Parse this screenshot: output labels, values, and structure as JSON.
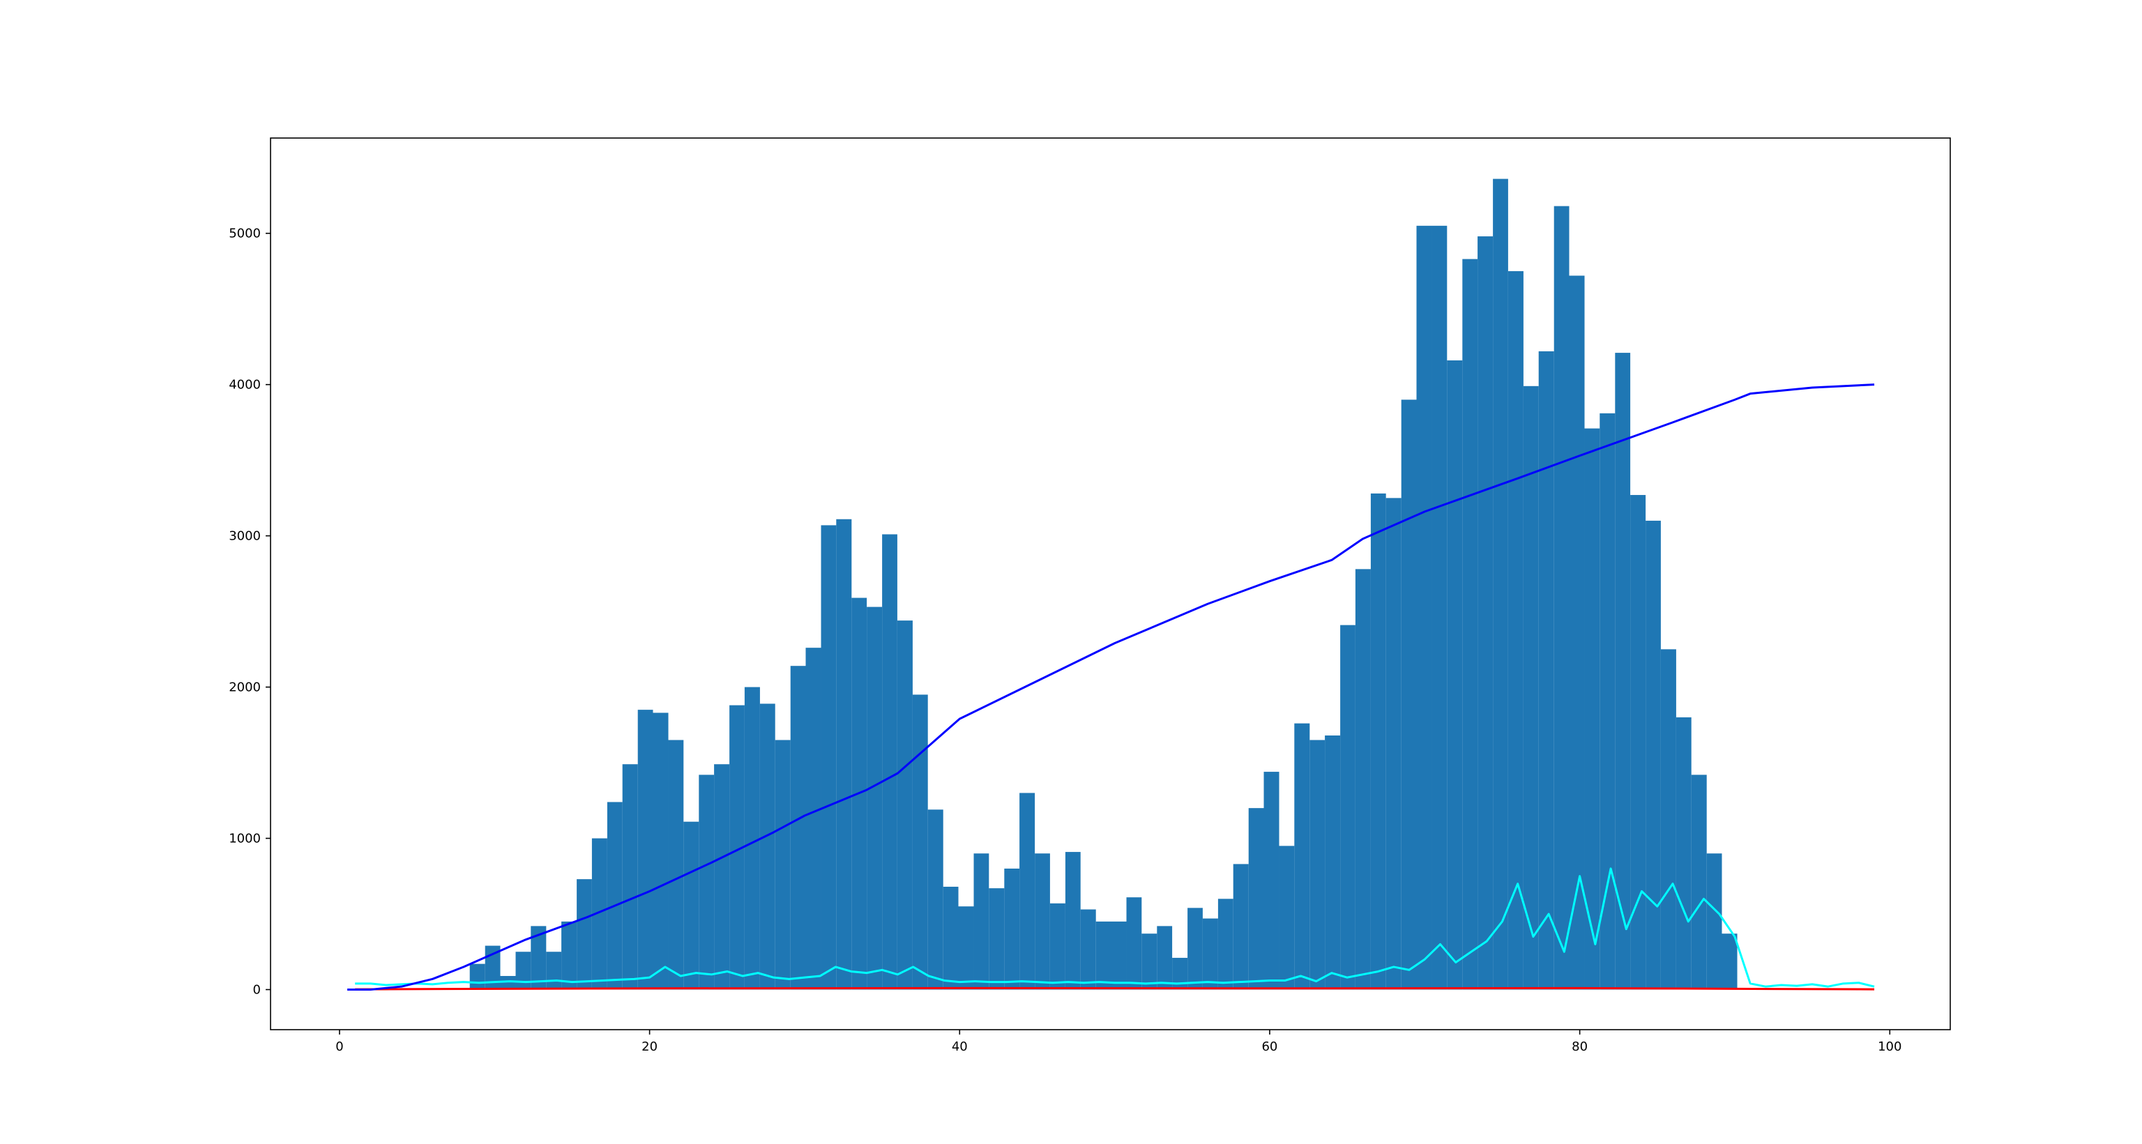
{
  "chart_data": {
    "type": "histogram",
    "color": "#1f77b4",
    "bins": [
      8.4,
      9.39,
      10.37,
      11.36,
      12.34,
      13.33,
      14.31,
      15.3,
      16.28,
      17.27,
      18.25,
      19.24,
      20.22,
      21.21,
      22.19,
      23.18,
      24.16,
      25.15,
      26.13,
      27.12,
      28.1,
      29.09,
      30.07,
      31.06,
      32.04,
      33.03,
      34.01,
      35.0,
      35.98,
      36.97,
      37.95,
      38.94,
      39.92,
      40.91,
      41.89,
      42.88,
      43.86,
      44.85,
      45.83,
      46.82,
      47.8,
      48.79,
      49.77,
      50.76,
      51.74,
      52.73,
      53.71,
      54.7,
      55.68,
      56.67,
      57.65,
      58.64,
      59.62,
      60.61,
      61.59,
      62.58,
      63.56,
      64.55,
      65.53,
      66.52,
      67.5,
      68.49,
      69.47,
      70.46,
      71.44,
      72.43,
      73.41,
      74.4,
      75.38,
      76.37,
      77.35,
      78.34,
      79.32,
      80.31,
      81.29,
      82.28,
      83.26,
      84.25,
      85.23,
      86.22,
      87.2,
      88.19,
      89.17,
      90.16
    ],
    "values": [
      170,
      290,
      90,
      250,
      420,
      250,
      450,
      730,
      1000,
      1240,
      1490,
      1850,
      1830,
      1650,
      1110,
      1420,
      1490,
      1880,
      2000,
      1890,
      1650,
      2140,
      2260,
      3070,
      3110,
      2590,
      2530,
      3010,
      2440,
      1950,
      1190,
      680,
      550,
      900,
      670,
      800,
      1300,
      900,
      570,
      910,
      530,
      450,
      450,
      610,
      370,
      420,
      210,
      540,
      470,
      600,
      830,
      1200,
      1440,
      950,
      1760,
      1650,
      1680,
      2410,
      2780,
      3280,
      3250,
      3900,
      5050,
      5050,
      4160,
      4830,
      4980,
      5360,
      4750,
      3990,
      4220,
      5180,
      4720,
      3710,
      3810,
      4210,
      3270,
      3100,
      2250,
      1800,
      1420,
      900,
      370
    ],
    "series": [
      {
        "color": "#00ffff",
        "x": [
          1,
          2,
          3,
          4,
          5,
          6,
          7,
          8,
          9,
          10,
          11,
          12,
          13,
          14,
          15,
          16,
          17,
          18,
          19,
          20,
          21,
          22,
          23,
          24,
          25,
          26,
          27,
          28,
          29,
          30,
          31,
          32,
          33,
          34,
          35,
          36,
          37,
          38,
          39,
          40,
          41,
          42,
          43,
          44,
          45,
          46,
          47,
          48,
          49,
          50,
          51,
          52,
          53,
          54,
          55,
          56,
          57,
          58,
          59,
          60,
          61,
          62,
          63,
          64,
          65,
          66,
          67,
          68,
          69,
          70,
          71,
          72,
          73,
          74,
          75,
          76,
          77,
          78,
          79,
          80,
          81,
          82,
          83,
          84,
          85,
          86,
          87,
          88,
          89,
          90,
          91,
          92,
          93,
          94,
          95,
          96,
          97,
          98,
          99
        ],
        "values": [
          40,
          40,
          30,
          35,
          40,
          35,
          45,
          50,
          45,
          50,
          55,
          50,
          55,
          60,
          50,
          55,
          60,
          65,
          70,
          80,
          150,
          90,
          110,
          100,
          120,
          90,
          110,
          80,
          70,
          80,
          90,
          150,
          120,
          110,
          130,
          100,
          150,
          90,
          60,
          50,
          55,
          50,
          50,
          55,
          50,
          45,
          50,
          45,
          50,
          45,
          45,
          40,
          45,
          40,
          45,
          50,
          45,
          50,
          55,
          60,
          60,
          90,
          55,
          110,
          80,
          100,
          120,
          150,
          130,
          200,
          300,
          180,
          250,
          320,
          450,
          700,
          350,
          500,
          250,
          750,
          300,
          800,
          400,
          650,
          550,
          700,
          450,
          600,
          500,
          350,
          40,
          20,
          30,
          25,
          35,
          20,
          40,
          45,
          20
        ]
      },
      {
        "color": "#ff0000",
        "x": [
          1,
          20,
          40,
          60,
          80,
          90,
          99
        ],
        "values": [
          2,
          8,
          10,
          8,
          10,
          5,
          2
        ]
      },
      {
        "color": "#0000ff",
        "x": [
          0.5,
          2,
          4,
          6,
          8,
          10,
          12,
          16,
          20,
          24,
          28,
          30,
          34,
          36,
          40,
          44,
          50,
          56,
          60,
          64,
          66,
          70,
          76,
          80,
          86,
          90,
          91,
          95,
          99
        ],
        "values": [
          0,
          0,
          20,
          70,
          150,
          240,
          330,
          480,
          650,
          840,
          1040,
          1150,
          1320,
          1430,
          1790,
          1990,
          2290,
          2550,
          2700,
          2840,
          2980,
          3160,
          3380,
          3530,
          3750,
          3900,
          3940,
          3980,
          4000
        ]
      }
    ],
    "xlim": [
      -4.45,
      103.9
    ],
    "ylim": [
      -265,
      5630
    ],
    "xticks": [
      0,
      20,
      40,
      60,
      80,
      100
    ],
    "yticks": [
      0,
      1000,
      2000,
      3000,
      4000,
      5000
    ]
  }
}
